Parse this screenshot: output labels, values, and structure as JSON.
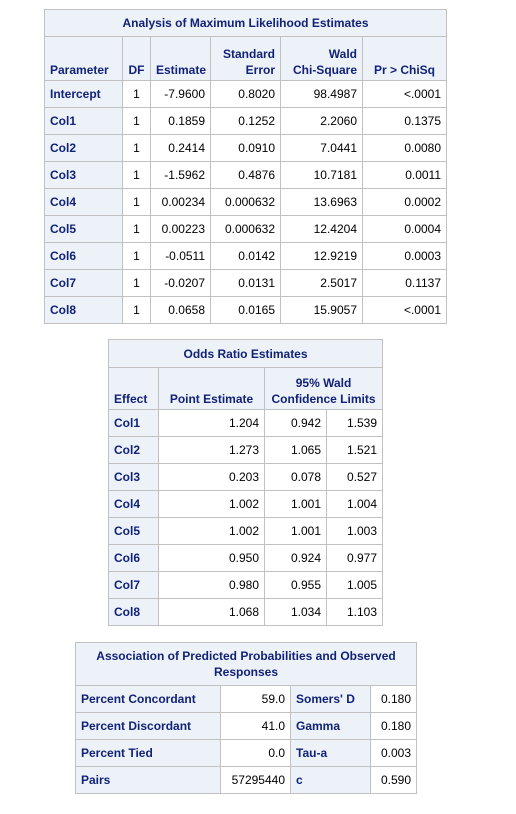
{
  "mle": {
    "title": "Analysis of Maximum Likelihood Estimates",
    "headers": {
      "parameter": "Parameter",
      "df": "DF",
      "estimate": "Estimate",
      "stderr_line1": "Standard",
      "stderr_line2": "Error",
      "wald_line1": "Wald",
      "wald_line2": "Chi-Square",
      "prob": "Pr > ChiSq"
    },
    "rows": [
      {
        "param": "Intercept",
        "df": "1",
        "estimate": "-7.9600",
        "stderr": "0.8020",
        "wald": "98.4987",
        "prob": "<.0001"
      },
      {
        "param": "Col1",
        "df": "1",
        "estimate": "0.1859",
        "stderr": "0.1252",
        "wald": "2.2060",
        "prob": "0.1375"
      },
      {
        "param": "Col2",
        "df": "1",
        "estimate": "0.2414",
        "stderr": "0.0910",
        "wald": "7.0441",
        "prob": "0.0080"
      },
      {
        "param": "Col3",
        "df": "1",
        "estimate": "-1.5962",
        "stderr": "0.4876",
        "wald": "10.7181",
        "prob": "0.0011"
      },
      {
        "param": "Col4",
        "df": "1",
        "estimate": "0.00234",
        "stderr": "0.000632",
        "wald": "13.6963",
        "prob": "0.0002"
      },
      {
        "param": "Col5",
        "df": "1",
        "estimate": "0.00223",
        "stderr": "0.000632",
        "wald": "12.4204",
        "prob": "0.0004"
      },
      {
        "param": "Col6",
        "df": "1",
        "estimate": "-0.0511",
        "stderr": "0.0142",
        "wald": "12.9219",
        "prob": "0.0003"
      },
      {
        "param": "Col7",
        "df": "1",
        "estimate": "-0.0207",
        "stderr": "0.0131",
        "wald": "2.5017",
        "prob": "0.1137"
      },
      {
        "param": "Col8",
        "df": "1",
        "estimate": "0.0658",
        "stderr": "0.0165",
        "wald": "15.9057",
        "prob": "<.0001"
      }
    ]
  },
  "odds": {
    "title": "Odds Ratio Estimates",
    "headers": {
      "effect": "Effect",
      "point": "Point Estimate",
      "ci_line1": "95% Wald",
      "ci_line2": "Confidence Limits"
    },
    "rows": [
      {
        "effect": "Col1",
        "point": "1.204",
        "lower": "0.942",
        "upper": "1.539"
      },
      {
        "effect": "Col2",
        "point": "1.273",
        "lower": "1.065",
        "upper": "1.521"
      },
      {
        "effect": "Col3",
        "point": "0.203",
        "lower": "0.078",
        "upper": "0.527"
      },
      {
        "effect": "Col4",
        "point": "1.002",
        "lower": "1.001",
        "upper": "1.004"
      },
      {
        "effect": "Col5",
        "point": "1.002",
        "lower": "1.001",
        "upper": "1.003"
      },
      {
        "effect": "Col6",
        "point": "0.950",
        "lower": "0.924",
        "upper": "0.977"
      },
      {
        "effect": "Col7",
        "point": "0.980",
        "lower": "0.955",
        "upper": "1.005"
      },
      {
        "effect": "Col8",
        "point": "1.068",
        "lower": "1.034",
        "upper": "1.103"
      }
    ]
  },
  "assoc": {
    "title": "Association of Predicted Probabilities and Observed Responses",
    "rows": [
      {
        "label1": "Percent Concordant",
        "value1": "59.0",
        "label2": "Somers' D",
        "value2": "0.180"
      },
      {
        "label1": "Percent Discordant",
        "value1": "41.0",
        "label2": "Gamma",
        "value2": "0.180"
      },
      {
        "label1": "Percent Tied",
        "value1": "0.0",
        "label2": "Tau-a",
        "value2": "0.003"
      },
      {
        "label1": "Pairs",
        "value1": "57295440",
        "label2": "c",
        "value2": "0.590"
      }
    ]
  },
  "colors": {
    "header_bg": "#edf2f9",
    "header_text": "#112277",
    "border": "#c1c1c1"
  }
}
